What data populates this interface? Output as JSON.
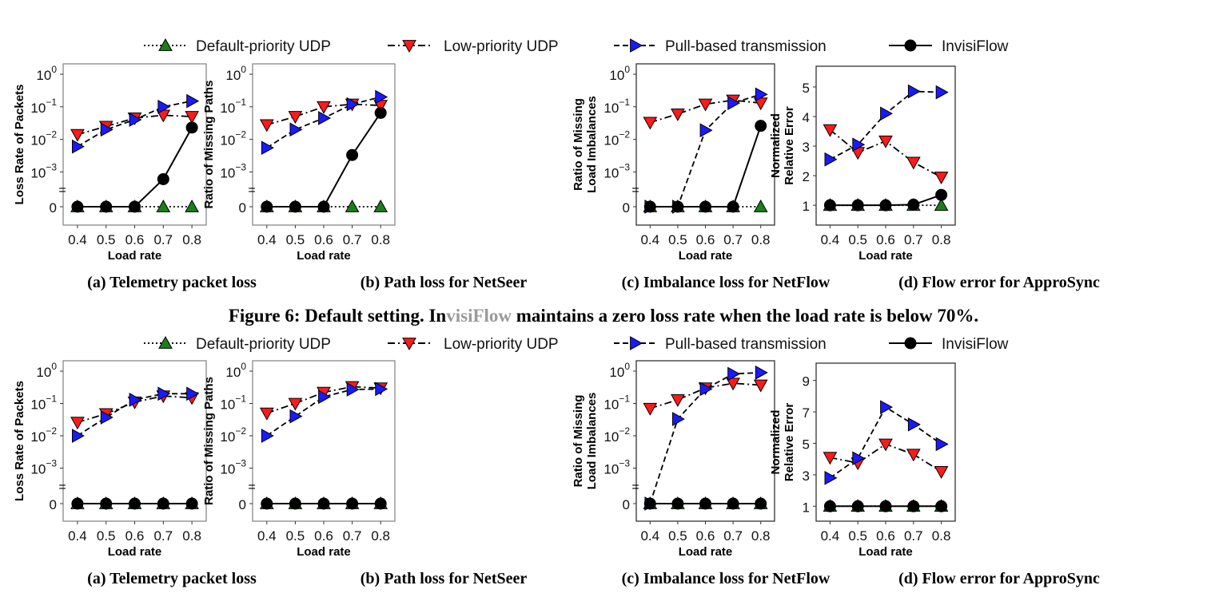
{
  "colors": {
    "default": "#1a7f1a",
    "low": "#ff1a1a",
    "pull": "#1a1aff",
    "invisi": "#000000"
  },
  "legend": [
    {
      "key": "default",
      "label": "Default-priority UDP",
      "marker": "triangle-up",
      "dash": "dotted"
    },
    {
      "key": "low",
      "label": "Low-priority UDP",
      "marker": "triangle-down",
      "dash": "dashdot"
    },
    {
      "key": "pull",
      "label": "Pull-based transmission",
      "marker": "triangle-right",
      "dash": "dashed"
    },
    {
      "key": "invisi",
      "label": "InvisiFlow",
      "marker": "circle",
      "dash": "solid"
    }
  ],
  "figure_caption": {
    "prefix": "Figure 6: Default setting. ",
    "name_a": "In",
    "name_b": "visiFlow",
    "suffix": " maintains a zero loss rate when the load rate is below 70%."
  },
  "chart_data": [
    {
      "type": "line",
      "row": 0,
      "caption": "(a) Telemetry packet loss",
      "xlabel": "Load rate",
      "ylabel": [
        "Loss Rate of Packets"
      ],
      "yscale": "log-with-zero",
      "x": [
        0.4,
        0.5,
        0.6,
        0.7,
        0.8
      ],
      "xticks": [
        "0.4",
        "0.5",
        "0.6",
        "0.7",
        "0.8"
      ],
      "yticks": [
        {
          "base": "10",
          "exp": "0"
        },
        {
          "base": "10",
          "exp": "-1"
        },
        {
          "base": "10",
          "exp": "-2"
        },
        {
          "base": "10",
          "exp": "-3"
        }
      ],
      "zero_label": "0",
      "series": [
        {
          "key": "default",
          "values": [
            0,
            0,
            0,
            0,
            0
          ]
        },
        {
          "key": "low",
          "values": [
            0.014,
            0.025,
            0.045,
            0.055,
            0.05
          ]
        },
        {
          "key": "pull",
          "values": [
            0.006,
            0.02,
            0.04,
            0.1,
            0.15
          ]
        },
        {
          "key": "invisi",
          "values": [
            0,
            0,
            0,
            0.0006,
            0.023
          ]
        }
      ]
    },
    {
      "type": "line",
      "row": 0,
      "caption": "(b) Path loss for NetSeer",
      "xlabel": "Load rate",
      "ylabel": [
        "Ratio of Missing Paths"
      ],
      "yscale": "log-with-zero",
      "x": [
        0.4,
        0.5,
        0.6,
        0.7,
        0.8
      ],
      "xticks": [
        "0.4",
        "0.5",
        "0.6",
        "0.7",
        "0.8"
      ],
      "yticks": [
        {
          "base": "10",
          "exp": "0"
        },
        {
          "base": "10",
          "exp": "-1"
        },
        {
          "base": "10",
          "exp": "-2"
        },
        {
          "base": "10",
          "exp": "-3"
        }
      ],
      "zero_label": "0",
      "series": [
        {
          "key": "default",
          "values": [
            0,
            0,
            0,
            0,
            0
          ]
        },
        {
          "key": "low",
          "values": [
            0.028,
            0.05,
            0.1,
            0.12,
            0.11
          ]
        },
        {
          "key": "pull",
          "values": [
            0.0055,
            0.02,
            0.045,
            0.12,
            0.2
          ]
        },
        {
          "key": "invisi",
          "values": [
            0,
            0,
            0,
            0.0033,
            0.065
          ]
        }
      ]
    },
    {
      "type": "line",
      "row": 0,
      "caption": "(c) Imbalance loss for NetFlow",
      "xlabel": "Load rate",
      "ylabel": [
        "Ratio of Missing",
        "Load Imbalances"
      ],
      "yscale": "log-with-zero",
      "x": [
        0.4,
        0.5,
        0.6,
        0.7,
        0.8
      ],
      "xticks": [
        "0.4",
        "0.5",
        "0.6",
        "0.7",
        "0.8"
      ],
      "yticks": [
        {
          "base": "10",
          "exp": "0"
        },
        {
          "base": "10",
          "exp": "-1"
        },
        {
          "base": "10",
          "exp": "-2"
        },
        {
          "base": "10",
          "exp": "-3"
        }
      ],
      "zero_label": "0",
      "series": [
        {
          "key": "default",
          "values": [
            0,
            0,
            0,
            0,
            0
          ]
        },
        {
          "key": "low",
          "values": [
            0.033,
            0.06,
            0.12,
            0.16,
            0.13
          ]
        },
        {
          "key": "pull",
          "values": [
            0,
            0,
            0.019,
            0.13,
            0.24
          ]
        },
        {
          "key": "invisi",
          "values": [
            0,
            0,
            0,
            0,
            0.026
          ]
        }
      ]
    },
    {
      "type": "line",
      "row": 0,
      "caption": "(d) Flow error for ApproSync",
      "xlabel": "Load rate",
      "ylabel": [
        "Normalized",
        "Relative Error"
      ],
      "yscale": "linear",
      "ylim": [
        0.33,
        5.7
      ],
      "x": [
        0.4,
        0.5,
        0.6,
        0.7,
        0.8
      ],
      "xticks": [
        "0.4",
        "0.5",
        "0.6",
        "0.7",
        "0.8"
      ],
      "ytick_values": [
        1,
        2,
        3,
        4,
        5
      ],
      "ytick_labels": [
        "1",
        "2",
        "3",
        "4",
        "5"
      ],
      "series": [
        {
          "key": "default",
          "values": [
            1,
            1,
            1,
            1,
            1
          ]
        },
        {
          "key": "low",
          "values": [
            3.55,
            2.78,
            3.17,
            2.45,
            1.95
          ]
        },
        {
          "key": "pull",
          "values": [
            2.55,
            3.05,
            4.1,
            4.85,
            4.82
          ]
        },
        {
          "key": "invisi",
          "values": [
            1,
            1,
            1,
            1.02,
            1.35
          ]
        }
      ]
    },
    {
      "type": "line",
      "row": 1,
      "caption": "(a) Telemetry packet loss",
      "xlabel": "Load rate",
      "ylabel": [
        "Loss Rate of Packets"
      ],
      "yscale": "log-with-zero",
      "x": [
        0.4,
        0.5,
        0.6,
        0.7,
        0.8
      ],
      "xticks": [
        "0.4",
        "0.5",
        "0.6",
        "0.7",
        "0.8"
      ],
      "yticks": [
        {
          "base": "10",
          "exp": "0"
        },
        {
          "base": "10",
          "exp": "-1"
        },
        {
          "base": "10",
          "exp": "-2"
        },
        {
          "base": "10",
          "exp": "-3"
        }
      ],
      "zero_label": "0",
      "series": [
        {
          "key": "default",
          "values": [
            0,
            0,
            0,
            0,
            0
          ]
        },
        {
          "key": "low",
          "values": [
            0.026,
            0.048,
            0.11,
            0.17,
            0.15
          ]
        },
        {
          "key": "pull",
          "values": [
            0.01,
            0.037,
            0.13,
            0.2,
            0.2
          ]
        },
        {
          "key": "invisi",
          "values": [
            0,
            0,
            0,
            0,
            0
          ]
        }
      ]
    },
    {
      "type": "line",
      "row": 1,
      "caption": "(b) Path loss for NetSeer",
      "xlabel": "Load rate",
      "ylabel": [
        "Ratio of Missing Paths"
      ],
      "yscale": "log-with-zero",
      "x": [
        0.4,
        0.5,
        0.6,
        0.7,
        0.8
      ],
      "xticks": [
        "0.4",
        "0.5",
        "0.6",
        "0.7",
        "0.8"
      ],
      "yticks": [
        {
          "base": "10",
          "exp": "0"
        },
        {
          "base": "10",
          "exp": "-1"
        },
        {
          "base": "10",
          "exp": "-2"
        },
        {
          "base": "10",
          "exp": "-3"
        }
      ],
      "zero_label": "0",
      "series": [
        {
          "key": "default",
          "values": [
            0,
            0,
            0,
            0,
            0
          ]
        },
        {
          "key": "low",
          "values": [
            0.05,
            0.1,
            0.22,
            0.33,
            0.3
          ]
        },
        {
          "key": "pull",
          "values": [
            0.01,
            0.04,
            0.16,
            0.27,
            0.28
          ]
        },
        {
          "key": "invisi",
          "values": [
            0,
            0,
            0,
            0,
            0
          ]
        }
      ]
    },
    {
      "type": "line",
      "row": 1,
      "caption": "(c) Imbalance loss for NetFlow",
      "xlabel": "Load rate",
      "ylabel": [
        "Ratio of Missing",
        "Load Imbalances"
      ],
      "yscale": "log-with-zero",
      "x": [
        0.4,
        0.5,
        0.6,
        0.7,
        0.8
      ],
      "xticks": [
        "0.4",
        "0.5",
        "0.6",
        "0.7",
        "0.8"
      ],
      "yticks": [
        {
          "base": "10",
          "exp": "0"
        },
        {
          "base": "10",
          "exp": "-1"
        },
        {
          "base": "10",
          "exp": "-2"
        },
        {
          "base": "10",
          "exp": "-3"
        }
      ],
      "zero_label": "0",
      "series": [
        {
          "key": "default",
          "values": [
            0,
            0,
            0,
            0,
            0
          ]
        },
        {
          "key": "low",
          "values": [
            0.07,
            0.13,
            0.3,
            0.42,
            0.37
          ]
        },
        {
          "key": "pull",
          "values": [
            0,
            0.033,
            0.28,
            0.82,
            0.9
          ]
        },
        {
          "key": "invisi",
          "values": [
            0,
            0,
            0,
            0,
            0
          ]
        }
      ]
    },
    {
      "type": "line",
      "row": 1,
      "caption": "(d) Flow error for ApproSync",
      "xlabel": "Load rate",
      "ylabel": [
        "Normalized",
        "Relative Error"
      ],
      "yscale": "linear",
      "ylim": [
        0.05,
        10.1
      ],
      "x": [
        0.4,
        0.5,
        0.6,
        0.7,
        0.8
      ],
      "xticks": [
        "0.4",
        "0.5",
        "0.6",
        "0.7",
        "0.8"
      ],
      "ytick_values": [
        1,
        3,
        5,
        7,
        9
      ],
      "ytick_labels": [
        "1",
        "3",
        "5",
        "7",
        "9"
      ],
      "series": [
        {
          "key": "default",
          "values": [
            1,
            1,
            1,
            1,
            1
          ]
        },
        {
          "key": "low",
          "values": [
            4.1,
            3.75,
            4.95,
            4.3,
            3.2
          ]
        },
        {
          "key": "pull",
          "values": [
            2.8,
            4.05,
            7.3,
            6.2,
            4.95
          ]
        },
        {
          "key": "invisi",
          "values": [
            1,
            1,
            1,
            1,
            1
          ]
        }
      ]
    }
  ]
}
